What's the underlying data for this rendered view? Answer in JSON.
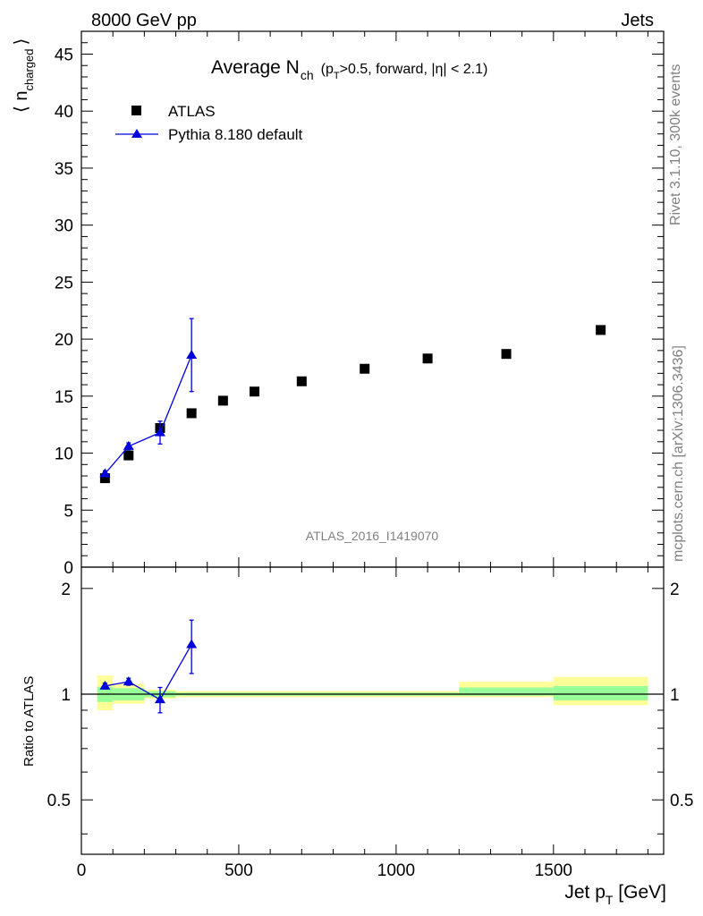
{
  "header": {
    "left": "8000 GeV pp",
    "right": "Jets"
  },
  "side_labels": {
    "top": "Rivet 3.1.10,  300k events",
    "bottom": "mcplots.cern.ch [arXiv:1306.3436]"
  },
  "watermark": "ATLAS_2016_I1419070",
  "main_title": {
    "main": "Average N",
    "main_sub": "ch",
    "paren_open": "(p",
    "paren_sub": "T",
    "paren_rest": ">0.5, forward, |η| < 2.1)"
  },
  "axes": {
    "y_main": {
      "pre": "⟨ n",
      "sub": "charged",
      "post": "⟩"
    },
    "y_ratio": "Ratio to ATLAS",
    "x": {
      "pre": "Jet p",
      "sub": "T",
      "post": " [GeV]"
    }
  },
  "legend": {
    "placement": "top-left",
    "entries": [
      {
        "label": "ATLAS",
        "marker": "square"
      },
      {
        "label": "Pythia 8.180 default",
        "marker": "triangle"
      }
    ]
  },
  "colors": {
    "data": "#000000",
    "mc": "#0000dd",
    "band_inner": "#99ff99",
    "band_outer": "#ffff99"
  },
  "chart_data": [
    {
      "type": "scatter",
      "panel": "main",
      "xlim": [
        0,
        1850
      ],
      "ylim": [
        0,
        47
      ],
      "x_ticks": [
        0,
        500,
        1000,
        1500
      ],
      "y_ticks": [
        0,
        5,
        10,
        15,
        20,
        25,
        30,
        35,
        40,
        45
      ],
      "series": [
        {
          "name": "ATLAS",
          "x": [
            75,
            150,
            250,
            350,
            450,
            550,
            700,
            900,
            1100,
            1350,
            1650
          ],
          "y": [
            7.8,
            9.8,
            12.2,
            13.5,
            14.6,
            15.4,
            16.3,
            17.4,
            18.3,
            18.7,
            20.8
          ]
        },
        {
          "name": "Pythia 8.180 default",
          "x": [
            75,
            150,
            250,
            350
          ],
          "y": [
            8.2,
            10.6,
            11.8,
            18.6
          ],
          "err": [
            0.25,
            0.3,
            1.0,
            3.2
          ]
        }
      ]
    },
    {
      "type": "line",
      "panel": "ratio",
      "xlim": [
        0,
        1850
      ],
      "ylim": [
        0.35,
        2.3
      ],
      "x_ticks": [
        0,
        500,
        1000,
        1500
      ],
      "y_ticks": [
        0.5,
        1,
        2
      ],
      "bands": [
        {
          "x": [
            50,
            100
          ],
          "inner": [
            0.95,
            1.05
          ],
          "outer": [
            0.9,
            1.13
          ]
        },
        {
          "x": [
            100,
            200
          ],
          "inner": [
            0.96,
            1.04
          ],
          "outer": [
            0.94,
            1.07
          ]
        },
        {
          "x": [
            200,
            300
          ],
          "inner": [
            0.98,
            1.02
          ],
          "outer": [
            0.97,
            1.03
          ]
        },
        {
          "x": [
            300,
            1200
          ],
          "inner": [
            0.99,
            1.01
          ],
          "outer": [
            0.98,
            1.02
          ]
        },
        {
          "x": [
            1200,
            1500
          ],
          "inner": [
            0.99,
            1.045
          ],
          "outer": [
            0.98,
            1.085
          ]
        },
        {
          "x": [
            1500,
            1800
          ],
          "inner": [
            0.96,
            1.055
          ],
          "outer": [
            0.93,
            1.12
          ]
        }
      ],
      "series": [
        {
          "name": "Pythia 8.180 default",
          "x": [
            75,
            150,
            250,
            350
          ],
          "y": [
            1.055,
            1.085,
            0.965,
            1.385
          ],
          "err": [
            0.02,
            0.025,
            0.08,
            0.24
          ]
        }
      ]
    }
  ]
}
